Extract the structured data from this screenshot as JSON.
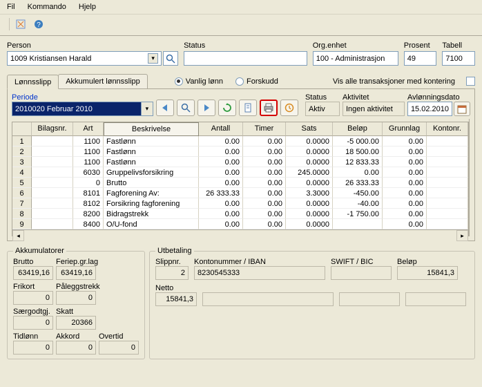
{
  "menu": {
    "fil": "Fil",
    "kommando": "Kommando",
    "hjelp": "Hjelp"
  },
  "top": {
    "person_lbl": "Person",
    "person_val": "1009 Kristiansen Harald",
    "status_lbl": "Status",
    "status_val": "",
    "org_lbl": "Org.enhet",
    "org_val": "100 - Administrasjon",
    "prosent_lbl": "Prosent",
    "prosent_val": "49",
    "tabell_lbl": "Tabell",
    "tabell_val": "7100"
  },
  "tabs": {
    "t1": "Lønnsslipp",
    "t2": "Akkumulert lønnsslipp"
  },
  "radios": {
    "r1": "Vanlig lønn",
    "r2": "Forskudd"
  },
  "trans_label": "Vis alle transaksjoner med kontering",
  "periode": {
    "lbl": "Periode",
    "val": "2010020 Februar 2010"
  },
  "status_strip": {
    "status_lbl": "Status",
    "status_val": "Aktiv",
    "akt_lbl": "Aktivitet",
    "akt_val": "Ingen aktivitet",
    "avl_lbl": "Avlønningsdato",
    "avl_val": "15.02.2010"
  },
  "grid": {
    "headers": [
      "",
      "Bilagsnr.",
      "Art",
      "Beskrivelse",
      "Antall",
      "Timer",
      "Sats",
      "Beløp",
      "Grunnlag",
      "Kontonr."
    ],
    "rows": [
      {
        "n": "1",
        "bil": "",
        "art": "1100",
        "besk": "Fastlønn",
        "ant": "0.00",
        "tim": "0.00",
        "sats": "0.0000",
        "bel": "-5 000.00",
        "grn": "0.00",
        "kon": ""
      },
      {
        "n": "2",
        "bil": "",
        "art": "1100",
        "besk": "Fastlønn",
        "ant": "0.00",
        "tim": "0.00",
        "sats": "0.0000",
        "bel": "18 500.00",
        "grn": "0.00",
        "kon": ""
      },
      {
        "n": "3",
        "bil": "",
        "art": "1100",
        "besk": "Fastlønn",
        "ant": "0.00",
        "tim": "0.00",
        "sats": "0.0000",
        "bel": "12 833.33",
        "grn": "0.00",
        "kon": ""
      },
      {
        "n": "4",
        "bil": "",
        "art": "6030",
        "besk": "Gruppelivsforsikring",
        "ant": "0.00",
        "tim": "0.00",
        "sats": "245.0000",
        "bel": "0.00",
        "grn": "0.00",
        "kon": ""
      },
      {
        "n": "5",
        "bil": "",
        "art": "0",
        "besk": "Brutto",
        "ant": "0.00",
        "tim": "0.00",
        "sats": "0.0000",
        "bel": "26 333.33",
        "grn": "0.00",
        "kon": ""
      },
      {
        "n": "6",
        "bil": "",
        "art": "8101",
        "besk": "Fagforening Av:",
        "ant": "26 333.33",
        "tim": "0.00",
        "sats": "3.3000",
        "bel": "-450.00",
        "grn": "0.00",
        "kon": ""
      },
      {
        "n": "7",
        "bil": "",
        "art": "8102",
        "besk": "Forsikring fagforening",
        "ant": "0.00",
        "tim": "0.00",
        "sats": "0.0000",
        "bel": "-40.00",
        "grn": "0.00",
        "kon": ""
      },
      {
        "n": "8",
        "bil": "",
        "art": "8200",
        "besk": "Bidragstrekk",
        "ant": "0.00",
        "tim": "0.00",
        "sats": "0.0000",
        "bel": "-1 750.00",
        "grn": "0.00",
        "kon": ""
      },
      {
        "n": "9",
        "bil": "",
        "art": "8400",
        "besk": "O/U-fond",
        "ant": "0.00",
        "tim": "0.00",
        "sats": "0.0000",
        "bel": "",
        "grn": "0.00",
        "kon": ""
      }
    ]
  },
  "acc": {
    "title": "Akkumulatorer",
    "brutto_lbl": "Brutto",
    "brutto_val": "63419,16",
    "feriep_lbl": "Feriep.gr.lag",
    "feriep_val": "63419,16",
    "frikort_lbl": "Frikort",
    "frikort_val": "0",
    "palegg_lbl": "Påleggstrekk",
    "palegg_val": "0",
    "saer_lbl": "Særgodtgj.",
    "saer_val": "0",
    "skatt_lbl": "Skatt",
    "skatt_val": "20366",
    "tidlon_lbl": "Tidlønn",
    "tidlon_val": "0",
    "akkord_lbl": "Akkord",
    "akkord_val": "0",
    "overtid_lbl": "Overtid",
    "overtid_val": "0"
  },
  "ub": {
    "title": "Utbetaling",
    "slip_lbl": "Slippnr.",
    "slip_val": "2",
    "konto_lbl": "Kontonummer / IBAN",
    "konto_val": "8230545333",
    "swift_lbl": "SWIFT / BIC",
    "swift_val": "",
    "belop_lbl": "Beløp",
    "belop_val": "15841,3",
    "netto_lbl": "Netto",
    "netto_val": "15841,3"
  },
  "icon_arrow_left": "⇦",
  "icon_mag": "🔍",
  "icon_arrow_right": "⇨",
  "icon_refresh": "↻",
  "icon_doc": "📄",
  "icon_print": "🖨",
  "icon_history": "🕓",
  "icon_cal": "📅",
  "icon_help": "?"
}
